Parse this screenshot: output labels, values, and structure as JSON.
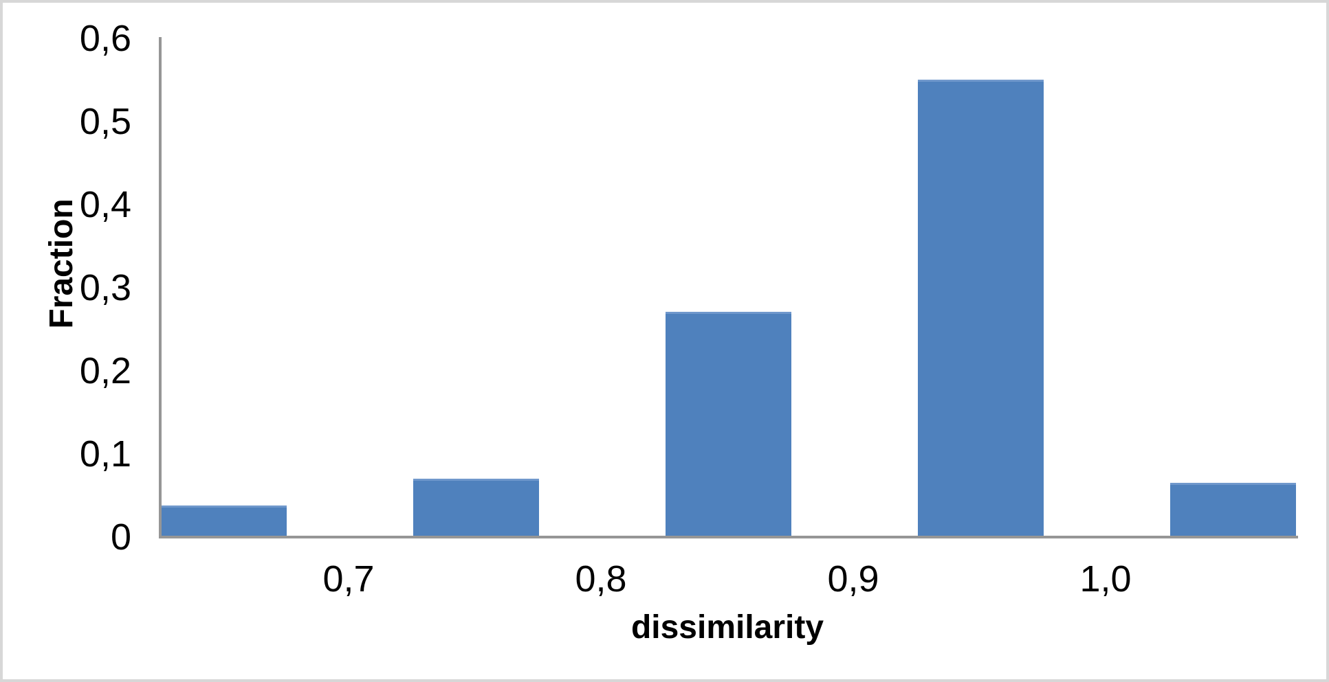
{
  "chart_data": {
    "type": "bar",
    "title": "",
    "xlabel": "dissimilarity",
    "ylabel": "Fraction",
    "x_tick_labels": [
      "0,7",
      "0,8",
      "0,9",
      "1,0"
    ],
    "y_tick_labels": [
      "0",
      "0,1",
      "0,2",
      "0,3",
      "0,4",
      "0,5",
      "0,6"
    ],
    "ylim": [
      0,
      0.6
    ],
    "xlim_estimated": [
      0.625,
      1.075
    ],
    "y_tick_step": 0.1,
    "x_tick_step": 0.1,
    "decimal_separator": ",",
    "grid": false,
    "legend": false,
    "bars": [
      {
        "x_center": 0.65,
        "value": 0.038
      },
      {
        "x_center": 0.75,
        "value": 0.07
      },
      {
        "x_center": 0.85,
        "value": 0.271
      },
      {
        "x_center": 0.95,
        "value": 0.55
      },
      {
        "x_center": 1.05,
        "value": 0.065
      }
    ],
    "colors": {
      "bar_fill": "#4F81BD",
      "bar_top_edge": "#7098CC",
      "axis_line": "#969696",
      "text": "#000000",
      "plot_background": "#FFFFFF",
      "outer_border": "#D7D7D7"
    }
  }
}
